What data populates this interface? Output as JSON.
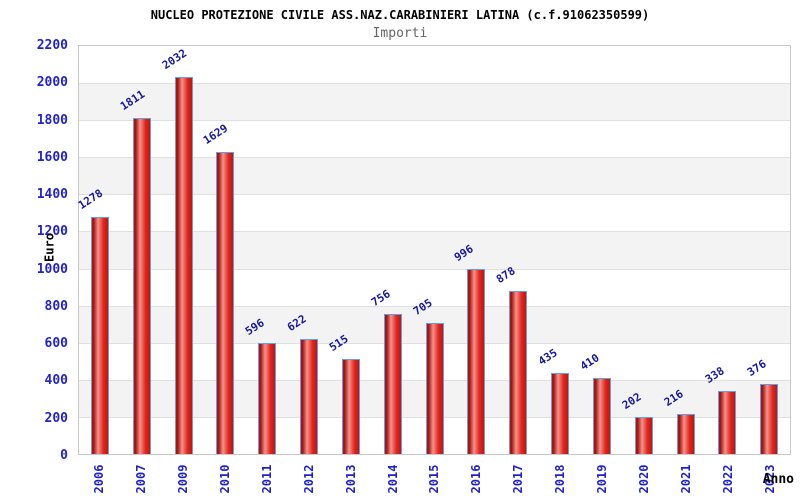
{
  "title": "NUCLEO PROTEZIONE CIVILE ASS.NAZ.CARABINIERI LATINA (c.f.91062350599)",
  "subtitle": "Importi",
  "chart_data": {
    "type": "bar",
    "categories": [
      "2006",
      "2007",
      "2009",
      "2010",
      "2011",
      "2012",
      "2013",
      "2014",
      "2015",
      "2016",
      "2017",
      "2018",
      "2019",
      "2020",
      "2021",
      "2022",
      "2023"
    ],
    "values": [
      1278,
      1811,
      2032,
      1629,
      596,
      622,
      515,
      756,
      705,
      996,
      878,
      435,
      410,
      202,
      216,
      338,
      376
    ],
    "title": "NUCLEO PROTEZIONE CIVILE ASS.NAZ.CARABINIERI LATINA (c.f.91062350599)",
    "subtitle": "Importi",
    "xlabel": "Anno",
    "ylabel": "Euro",
    "ylim": [
      0,
      2200
    ],
    "ytick_step": 200,
    "grid": true,
    "alternating_bands": true,
    "legend_position": null,
    "colors": {
      "bar_fill_main": "#e2241d",
      "bar_fill_dark": "#a31410",
      "bar_fill_light": "#f2938a",
      "bar_border": "#62a0e6",
      "value_label": "#19199b",
      "tick_label": "#2222cc",
      "axis_label": "#000000",
      "title": "#000000",
      "subtitle": "#666666",
      "band": "#f3f3f3",
      "gridline": "#e0e0e0",
      "plot_border": "#c9c9c9"
    }
  }
}
